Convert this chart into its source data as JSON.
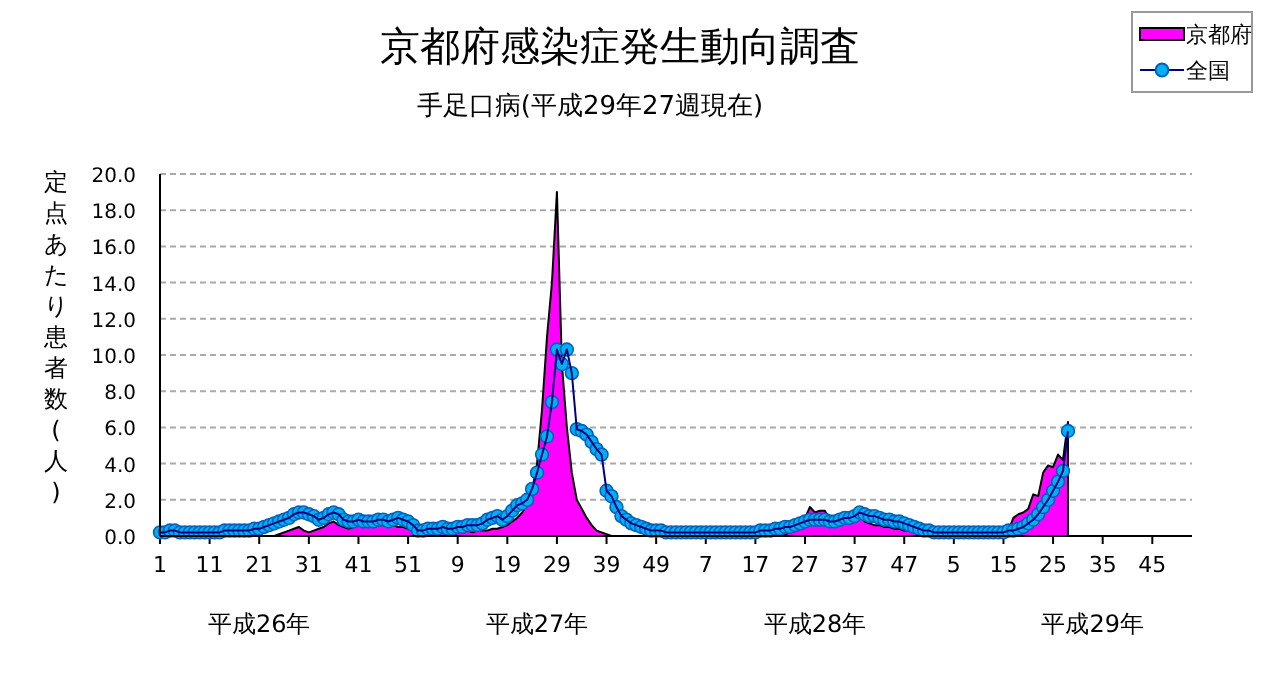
{
  "chart_data": {
    "type": "area",
    "title": "京都府感染症発生動向調査",
    "subtitle": "手足口病(平成29年27週現在)",
    "ylabel": "定点あたり患者数(人)",
    "annotations": [
      "平成26年",
      "平成27年",
      "平成28年",
      "平成29年"
    ],
    "categories": [
      "1",
      null,
      null,
      null,
      null,
      null,
      null,
      null,
      null,
      null,
      "11",
      null,
      null,
      null,
      null,
      null,
      null,
      null,
      null,
      null,
      "21",
      null,
      null,
      null,
      null,
      null,
      null,
      null,
      null,
      null,
      "31",
      null,
      null,
      null,
      null,
      null,
      null,
      null,
      null,
      null,
      "41",
      null,
      null,
      null,
      null,
      null,
      null,
      null,
      null,
      null,
      "51",
      null,
      null,
      null,
      null,
      null,
      null,
      null,
      null,
      null,
      "9",
      null,
      null,
      null,
      null,
      null,
      null,
      null,
      null,
      null,
      "19",
      null,
      null,
      null,
      null,
      null,
      null,
      null,
      null,
      null,
      "29",
      null,
      null,
      null,
      null,
      null,
      null,
      null,
      null,
      null,
      "39",
      null,
      null,
      null,
      null,
      null,
      null,
      null,
      null,
      null,
      "49",
      null,
      null,
      null,
      null,
      null,
      null,
      null,
      null,
      null,
      "7",
      null,
      null,
      null,
      null,
      null,
      null,
      null,
      null,
      null,
      "17",
      null,
      null,
      null,
      null,
      null,
      null,
      null,
      null,
      null,
      "27",
      null,
      null,
      null,
      null,
      null,
      null,
      null,
      null,
      null,
      "37",
      null,
      null,
      null,
      null,
      null,
      null,
      null,
      null,
      null,
      "47",
      null,
      null,
      null,
      null,
      null,
      null,
      null,
      null,
      null,
      "5",
      null,
      null,
      null,
      null,
      null,
      null,
      null,
      null,
      null,
      "15",
      null,
      null,
      null,
      null,
      null,
      null,
      null,
      null,
      null,
      "25",
      null,
      null,
      null,
      null,
      null,
      null,
      null,
      null,
      null,
      "35",
      null,
      null,
      null,
      null,
      null,
      null,
      null,
      null,
      null,
      "45",
      null,
      null,
      null,
      null,
      null,
      null,
      null,
      null
    ],
    "series": [
      {
        "name": "京都府",
        "color": "#ff00ff",
        "values": [
          0,
          0,
          0,
          0,
          0,
          0,
          0,
          0,
          0,
          0,
          0,
          0,
          0,
          0,
          0,
          0,
          0,
          0,
          0,
          0,
          0,
          0,
          0,
          0,
          0.1,
          0.2,
          0.3,
          0.4,
          0.5,
          0.3,
          0.2,
          0.3,
          0.4,
          0.5,
          0.7,
          0.8,
          0.6,
          0.5,
          0.4,
          0.5,
          0.6,
          0.5,
          0.5,
          0.6,
          0.6,
          0.7,
          0.6,
          0.6,
          0.5,
          0.5,
          0.4,
          0.3,
          0.2,
          0.2,
          0.3,
          0.2,
          0.2,
          0.3,
          0.2,
          0.2,
          0.3,
          0.3,
          0.3,
          0.2,
          0.3,
          0.3,
          0.3,
          0.4,
          0.4,
          0.5,
          0.6,
          0.8,
          1.0,
          1.3,
          1.8,
          2.5,
          4.0,
          7.0,
          11.0,
          14.0,
          19.0,
          9.5,
          6.0,
          3.5,
          2.0,
          1.5,
          1.0,
          0.6,
          0.3,
          0.2,
          0.1,
          0,
          0,
          0,
          0,
          0,
          0,
          0,
          0,
          0,
          0,
          0,
          0,
          0,
          0,
          0,
          0,
          0,
          0,
          0,
          0,
          0,
          0,
          0,
          0,
          0,
          0,
          0,
          0,
          0,
          0,
          0,
          0,
          0,
          0,
          0,
          0.1,
          0.2,
          0.4,
          0.7,
          1.0,
          1.6,
          1.3,
          1.4,
          1.4,
          0.9,
          0.8,
          0.8,
          0.9,
          0.9,
          1.0,
          1.2,
          0.8,
          0.7,
          0.6,
          0.6,
          0.5,
          0.5,
          0.4,
          0.4,
          0.3,
          0.3,
          0.2,
          0.1,
          0.1,
          0,
          0,
          0,
          0,
          0,
          0,
          0,
          0,
          0,
          0,
          0,
          0,
          0,
          0,
          0,
          0,
          0.3,
          1.0,
          1.2,
          1.3,
          1.5,
          2.3,
          2.2,
          3.5,
          3.9,
          3.8,
          4.5,
          4.2,
          6.3,
          null,
          null,
          null,
          null,
          null,
          null,
          null,
          null,
          null,
          null,
          null,
          null,
          null,
          null,
          null,
          null,
          null,
          null,
          null,
          null,
          null,
          null,
          null,
          null,
          null
        ]
      },
      {
        "name": "全国",
        "type": "line",
        "marker": "circle",
        "color": "#00b0f0",
        "values": [
          0.2,
          0.2,
          0.3,
          0.3,
          0.2,
          0.2,
          0.2,
          0.2,
          0.2,
          0.2,
          0.2,
          0.2,
          0.2,
          0.3,
          0.3,
          0.3,
          0.3,
          0.3,
          0.3,
          0.4,
          0.4,
          0.5,
          0.6,
          0.7,
          0.8,
          0.9,
          1.0,
          1.2,
          1.3,
          1.3,
          1.2,
          1.1,
          0.9,
          1.0,
          1.2,
          1.3,
          1.2,
          0.9,
          0.8,
          0.8,
          0.9,
          0.8,
          0.8,
          0.8,
          0.9,
          0.9,
          0.8,
          0.9,
          1.0,
          0.9,
          0.8,
          0.6,
          0.3,
          0.3,
          0.4,
          0.4,
          0.4,
          0.5,
          0.4,
          0.4,
          0.5,
          0.5,
          0.6,
          0.6,
          0.6,
          0.7,
          0.9,
          1.0,
          1.1,
          0.9,
          1.1,
          1.4,
          1.7,
          1.8,
          2.0,
          2.6,
          3.5,
          4.5,
          5.5,
          7.4,
          10.3,
          9.5,
          10.3,
          9.0,
          5.9,
          5.8,
          5.6,
          5.2,
          4.8,
          4.5,
          2.5,
          2.2,
          1.6,
          1.1,
          0.9,
          0.7,
          0.6,
          0.5,
          0.4,
          0.3,
          0.3,
          0.3,
          0.2,
          0.2,
          0.2,
          0.2,
          0.2,
          0.2,
          0.2,
          0.2,
          0.2,
          0.2,
          0.2,
          0.2,
          0.2,
          0.2,
          0.2,
          0.2,
          0.2,
          0.2,
          0.2,
          0.3,
          0.3,
          0.3,
          0.4,
          0.4,
          0.5,
          0.5,
          0.6,
          0.7,
          0.8,
          0.9,
          0.9,
          0.9,
          0.9,
          0.8,
          0.8,
          0.9,
          1.0,
          1.0,
          1.1,
          1.3,
          1.2,
          1.1,
          1.1,
          1.0,
          0.9,
          0.9,
          0.8,
          0.8,
          0.7,
          0.6,
          0.5,
          0.4,
          0.3,
          0.3,
          0.2,
          0.2,
          0.2,
          0.2,
          0.2,
          0.2,
          0.2,
          0.2,
          0.2,
          0.2,
          0.2,
          0.2,
          0.2,
          0.2,
          0.2,
          0.3,
          0.3,
          0.4,
          0.5,
          0.7,
          0.9,
          1.2,
          1.6,
          2.0,
          2.5,
          3.0,
          3.6,
          5.8,
          null,
          null,
          null,
          null,
          null,
          null,
          null,
          null,
          null,
          null,
          null,
          null,
          null,
          null,
          null,
          null,
          null,
          null,
          null,
          null,
          null,
          null,
          null,
          null,
          null
        ]
      }
    ],
    "ylim": [
      0,
      20
    ],
    "yticks": [
      {
        "value": 0,
        "label": "0.0"
      },
      {
        "value": 2,
        "label": "2.0"
      },
      {
        "value": 4,
        "label": "4.0"
      },
      {
        "value": 6,
        "label": "6.0"
      },
      {
        "value": 8,
        "label": "8.0"
      },
      {
        "value": 10,
        "label": "10.0"
      },
      {
        "value": 12,
        "label": "12.0"
      },
      {
        "value": 14,
        "label": "14.0"
      },
      {
        "value": 16,
        "label": "16.0"
      },
      {
        "value": 18,
        "label": "18.0"
      },
      {
        "value": 20,
        "label": "20.0"
      }
    ],
    "grid": "y",
    "legend": "top right"
  }
}
